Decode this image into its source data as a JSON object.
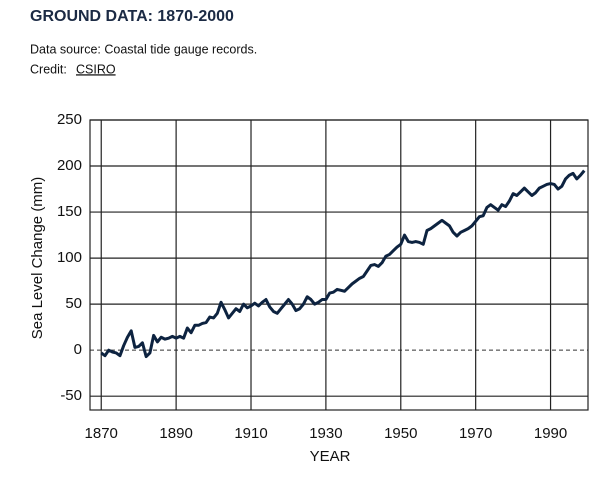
{
  "header": {
    "title": "GROUND DATA: 1870-2000",
    "source": "Data source: Coastal tide gauge records.",
    "credit_label": "Credit:",
    "credit_link": "CSIRO"
  },
  "chart_data": {
    "type": "line",
    "xlabel": "YEAR",
    "ylabel": "Sea Level Change (mm)",
    "xlim": [
      1867,
      2000
    ],
    "ylim": [
      -65,
      250
    ],
    "xticks": [
      1870,
      1890,
      1910,
      1930,
      1950,
      1970,
      1990
    ],
    "yticks": [
      -50,
      0,
      50,
      100,
      150,
      200,
      250
    ],
    "grid": true,
    "zero_line": "dashed",
    "series": [
      {
        "name": "Sea level",
        "color": "#0d2340",
        "x": [
          1870,
          1871,
          1872,
          1873,
          1874,
          1875,
          1876,
          1877,
          1878,
          1879,
          1880,
          1881,
          1882,
          1883,
          1884,
          1885,
          1886,
          1887,
          1888,
          1889,
          1890,
          1891,
          1892,
          1893,
          1894,
          1895,
          1896,
          1897,
          1898,
          1899,
          1900,
          1901,
          1902,
          1903,
          1904,
          1905,
          1906,
          1907,
          1908,
          1909,
          1910,
          1911,
          1912,
          1913,
          1914,
          1915,
          1916,
          1917,
          1918,
          1919,
          1920,
          1921,
          1922,
          1923,
          1924,
          1925,
          1926,
          1927,
          1928,
          1929,
          1930,
          1931,
          1932,
          1933,
          1934,
          1935,
          1936,
          1937,
          1938,
          1939,
          1940,
          1941,
          1942,
          1943,
          1944,
          1945,
          1946,
          1947,
          1948,
          1949,
          1950,
          1951,
          1952,
          1953,
          1954,
          1955,
          1956,
          1957,
          1958,
          1959,
          1960,
          1961,
          1962,
          1963,
          1964,
          1965,
          1966,
          1967,
          1968,
          1969,
          1970,
          1971,
          1972,
          1973,
          1974,
          1975,
          1976,
          1977,
          1978,
          1979,
          1980,
          1981,
          1982,
          1983,
          1984,
          1985,
          1986,
          1987,
          1988,
          1989,
          1990,
          1991,
          1992,
          1993,
          1994,
          1995,
          1996,
          1997,
          1998,
          1999
        ],
        "values": [
          -3,
          -6,
          0,
          -2,
          -3,
          -6,
          5,
          14,
          21,
          3,
          4,
          8,
          -7,
          -3,
          16,
          9,
          14,
          12,
          13,
          15,
          13,
          15,
          13,
          24,
          19,
          27,
          27,
          29,
          30,
          36,
          35,
          40,
          52,
          44,
          35,
          40,
          45,
          42,
          50,
          46,
          48,
          51,
          48,
          52,
          55,
          47,
          42,
          40,
          45,
          50,
          55,
          50,
          43,
          45,
          50,
          58,
          55,
          50,
          52,
          55,
          55,
          62,
          63,
          66,
          65,
          64,
          68,
          72,
          75,
          78,
          80,
          86,
          92,
          93,
          91,
          95,
          102,
          104,
          108,
          112,
          115,
          125,
          118,
          117,
          118,
          117,
          115,
          130,
          132,
          135,
          138,
          141,
          138,
          135,
          128,
          124,
          128,
          130,
          132,
          135,
          140,
          145,
          146,
          155,
          158,
          155,
          152,
          158,
          156,
          162,
          170,
          168,
          172,
          176,
          172,
          168,
          171,
          176,
          178,
          180,
          181,
          180,
          175,
          178,
          186,
          190,
          192,
          186,
          190,
          195
        ]
      }
    ]
  }
}
